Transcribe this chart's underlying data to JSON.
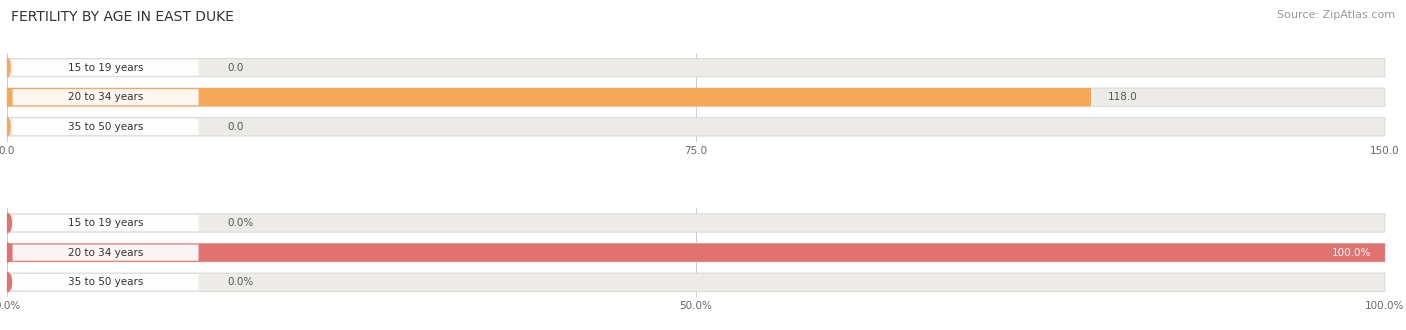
{
  "title": "FERTILITY BY AGE IN EAST DUKE",
  "source": "Source: ZipAtlas.com",
  "chart1": {
    "categories": [
      "15 to 19 years",
      "20 to 34 years",
      "35 to 50 years"
    ],
    "values": [
      0.0,
      118.0,
      0.0
    ],
    "max_val": 150.0,
    "tick_vals": [
      0.0,
      75.0,
      150.0
    ],
    "tick_labels": [
      "0.0",
      "75.0",
      "150.0"
    ],
    "bar_color": "#F5A855",
    "bar_color_light": "#F5C890",
    "bg_color": "#EDEBE8",
    "bg_border": "#D8D5D0"
  },
  "chart2": {
    "categories": [
      "15 to 19 years",
      "20 to 34 years",
      "35 to 50 years"
    ],
    "values": [
      0.0,
      100.0,
      0.0
    ],
    "max_val": 100.0,
    "tick_vals": [
      0.0,
      50.0,
      100.0
    ],
    "tick_labels": [
      "0.0%",
      "50.0%",
      "100.0%"
    ],
    "bar_color": "#E07272",
    "bar_color_light": "#EAA0A0",
    "bg_color": "#EDEBE8",
    "bg_border": "#D8D5D0"
  },
  "fig_width": 14.06,
  "fig_height": 3.3,
  "background_color": "#FFFFFF",
  "title_fontsize": 10,
  "source_fontsize": 8,
  "label_fontsize": 7.5,
  "value_fontsize": 7.5
}
